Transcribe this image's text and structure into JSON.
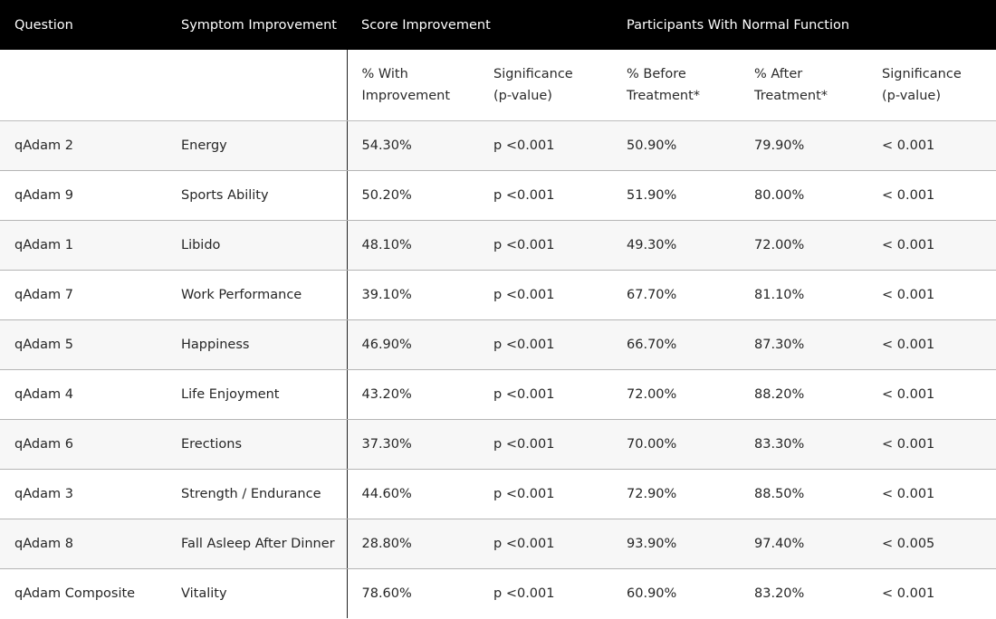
{
  "header": {
    "question": "Question",
    "symptom_improvement": "Symptom Improvement",
    "score_improvement": "Score Improvement",
    "participants_normal": "Participants With Normal Function"
  },
  "subheader": {
    "pct_with_improvement": "% With Improvement",
    "significance_score": "Significance (p-value)",
    "pct_before": "% Before Treatment*",
    "pct_after": "% After Treatment*",
    "significance_normal": "Significance (p-value)"
  },
  "rows": [
    {
      "question": "qAdam 2",
      "symptom": "Energy",
      "pct_improvement": "54.30%",
      "sig_score": "p <0.001",
      "before": "50.90%",
      "after": "79.90%",
      "sig_normal": "< 0.001"
    },
    {
      "question": "qAdam 9",
      "symptom": "Sports Ability",
      "pct_improvement": "50.20%",
      "sig_score": "p <0.001",
      "before": "51.90%",
      "after": "80.00%",
      "sig_normal": "< 0.001"
    },
    {
      "question": "qAdam 1",
      "symptom": "Libido",
      "pct_improvement": "48.10%",
      "sig_score": "p <0.001",
      "before": "49.30%",
      "after": "72.00%",
      "sig_normal": "< 0.001"
    },
    {
      "question": "qAdam 7",
      "symptom": "Work Performance",
      "pct_improvement": "39.10%",
      "sig_score": "p <0.001",
      "before": "67.70%",
      "after": "81.10%",
      "sig_normal": "< 0.001"
    },
    {
      "question": "qAdam 5",
      "symptom": "Happiness",
      "pct_improvement": "46.90%",
      "sig_score": "p <0.001",
      "before": "66.70%",
      "after": "87.30%",
      "sig_normal": "< 0.001"
    },
    {
      "question": "qAdam 4",
      "symptom": "Life Enjoyment",
      "pct_improvement": "43.20%",
      "sig_score": "p <0.001",
      "before": "72.00%",
      "after": "88.20%",
      "sig_normal": "< 0.001"
    },
    {
      "question": "qAdam 6",
      "symptom": "Erections",
      "pct_improvement": "37.30%",
      "sig_score": "p <0.001",
      "before": "70.00%",
      "after": "83.30%",
      "sig_normal": "< 0.001"
    },
    {
      "question": "qAdam 3",
      "symptom": "Strength / Endurance",
      "pct_improvement": "44.60%",
      "sig_score": "p <0.001",
      "before": "72.90%",
      "after": "88.50%",
      "sig_normal": "< 0.001"
    },
    {
      "question": "qAdam 8",
      "symptom": "Fall Asleep After Dinner",
      "pct_improvement": "28.80%",
      "sig_score": "p <0.001",
      "before": "93.90%",
      "after": "97.40%",
      "sig_normal": "< 0.005"
    },
    {
      "question": "qAdam Composite",
      "symptom": "Vitality",
      "pct_improvement": "78.60%",
      "sig_score": "p <0.001",
      "before": "60.90%",
      "after": "83.20%",
      "sig_normal": "< 0.001"
    }
  ]
}
